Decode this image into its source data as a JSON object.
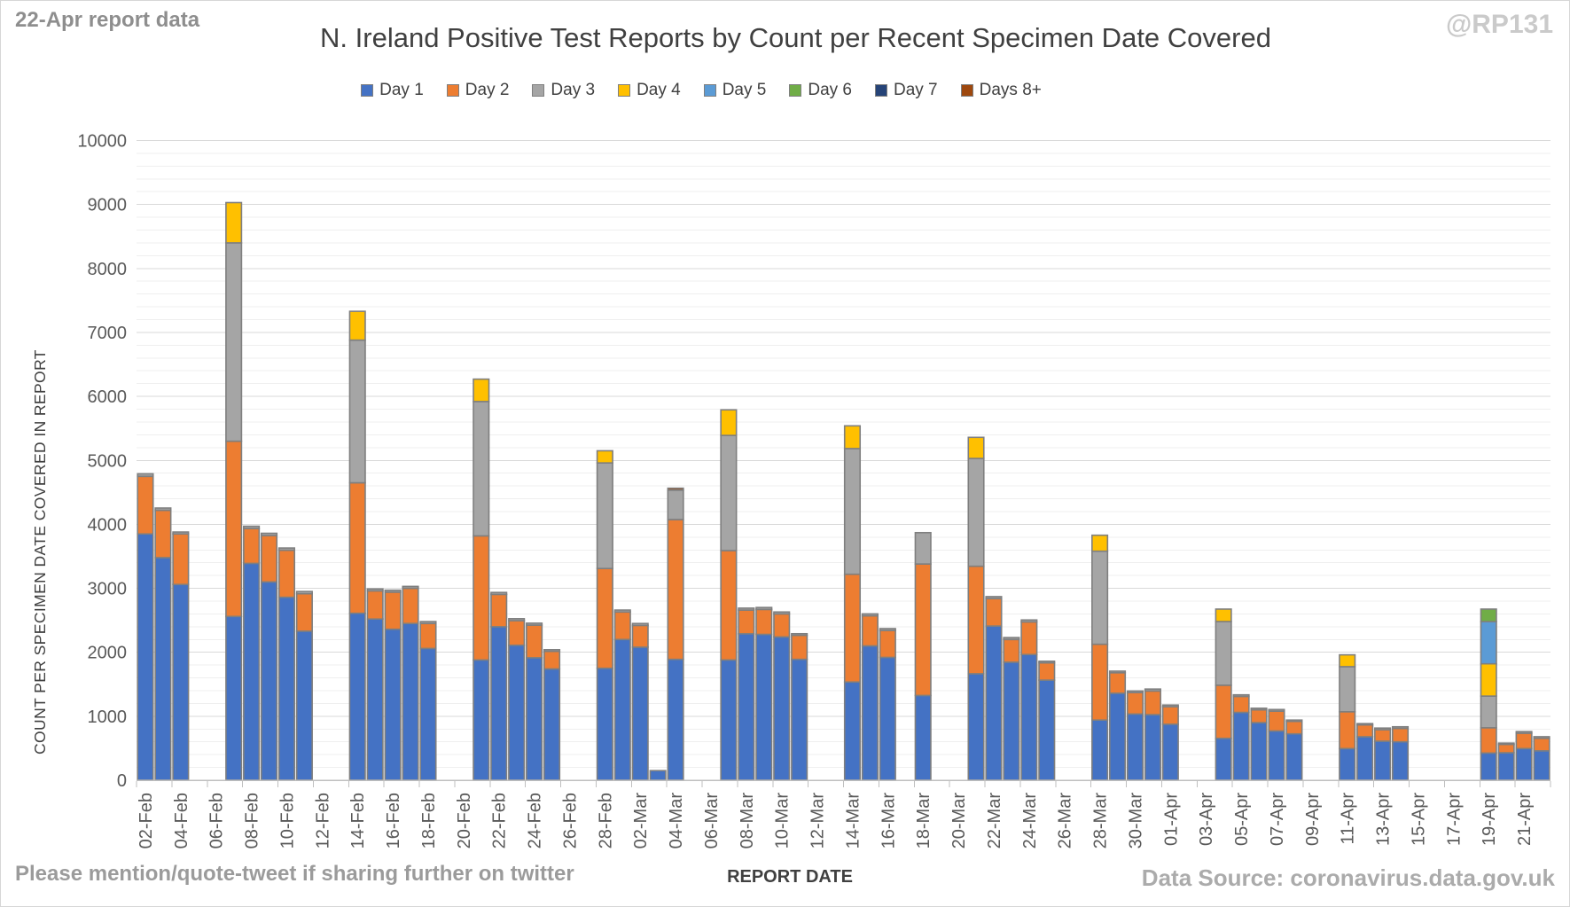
{
  "annotations": {
    "report_note": "22-Apr report data",
    "watermark": "@RP131",
    "footer_left": "Please mention/quote-tweet if sharing further on twitter",
    "footer_right": "Data Source: coronavirus.data.gov.uk"
  },
  "chart_data": {
    "type": "bar",
    "stacked": true,
    "title": "N. Ireland Positive Test Reports by Count per Recent Specimen Date Covered",
    "xlabel": "REPORT DATE",
    "ylabel": "COUNT PER SPECIMEN DATE COVERED IN REPORT",
    "ylim": [
      0,
      10000
    ],
    "y_tick_step": 1000,
    "y_minor_gridline_step": 200,
    "grid": true,
    "legend_position": "top",
    "series": [
      {
        "name": "Day 1",
        "color": "#4472C4"
      },
      {
        "name": "Day 2",
        "color": "#ED7D31"
      },
      {
        "name": "Day 3",
        "color": "#A5A5A5"
      },
      {
        "name": "Day 4",
        "color": "#FFC000"
      },
      {
        "name": "Day 5",
        "color": "#5B9BD5"
      },
      {
        "name": "Day 6",
        "color": "#70AD47"
      },
      {
        "name": "Day 7",
        "color": "#264478"
      },
      {
        "name": "Days 8+",
        "color": "#9E480E"
      }
    ],
    "x_slot_count": 80,
    "x_slot0_date": "02-Feb",
    "x_tick_labels": [
      "02-Feb",
      "04-Feb",
      "06-Feb",
      "08-Feb",
      "10-Feb",
      "12-Feb",
      "14-Feb",
      "16-Feb",
      "18-Feb",
      "20-Feb",
      "22-Feb",
      "24-Feb",
      "26-Feb",
      "28-Feb",
      "02-Mar",
      "04-Mar",
      "06-Mar",
      "08-Mar",
      "10-Mar",
      "12-Mar",
      "14-Mar",
      "16-Mar",
      "18-Mar",
      "20-Mar",
      "22-Mar",
      "24-Mar",
      "26-Mar",
      "28-Mar",
      "30-Mar",
      "01-Apr",
      "03-Apr",
      "05-Apr",
      "07-Apr",
      "09-Apr",
      "11-Apr",
      "13-Apr",
      "15-Apr",
      "17-Apr",
      "19-Apr",
      "21-Apr"
    ],
    "bars": [
      {
        "date": "02-Feb",
        "slot": 0,
        "values": [
          3850,
          900,
          40
        ]
      },
      {
        "date": "03-Feb",
        "slot": 1,
        "values": [
          3480,
          740,
          35
        ]
      },
      {
        "date": "04-Feb",
        "slot": 2,
        "values": [
          3060,
          790,
          30
        ]
      },
      {
        "date": "07-Feb",
        "slot": 5,
        "values": [
          2560,
          2740,
          3100,
          630
        ]
      },
      {
        "date": "08-Feb",
        "slot": 6,
        "values": [
          3390,
          545,
          35
        ]
      },
      {
        "date": "09-Feb",
        "slot": 7,
        "values": [
          3100,
          725,
          35
        ]
      },
      {
        "date": "10-Feb",
        "slot": 8,
        "values": [
          2860,
          735,
          35
        ]
      },
      {
        "date": "11-Feb",
        "slot": 9,
        "values": [
          2330,
          585,
          35
        ]
      },
      {
        "date": "14-Feb",
        "slot": 12,
        "values": [
          2610,
          2040,
          2230,
          450
        ]
      },
      {
        "date": "15-Feb",
        "slot": 13,
        "values": [
          2520,
          440,
          30
        ]
      },
      {
        "date": "16-Feb",
        "slot": 14,
        "values": [
          2360,
          580,
          30
        ]
      },
      {
        "date": "17-Feb",
        "slot": 15,
        "values": [
          2450,
          550,
          30
        ]
      },
      {
        "date": "18-Feb",
        "slot": 16,
        "values": [
          2060,
          390,
          30
        ]
      },
      {
        "date": "21-Feb",
        "slot": 19,
        "values": [
          1880,
          1940,
          2100,
          350
        ]
      },
      {
        "date": "22-Feb",
        "slot": 20,
        "values": [
          2400,
          505,
          30
        ]
      },
      {
        "date": "23-Feb",
        "slot": 21,
        "values": [
          2110,
          385,
          30
        ]
      },
      {
        "date": "24-Feb",
        "slot": 22,
        "values": [
          1915,
          510,
          30
        ]
      },
      {
        "date": "25-Feb",
        "slot": 23,
        "values": [
          1740,
          275,
          25
        ]
      },
      {
        "date": "28-Feb",
        "slot": 26,
        "values": [
          1750,
          1560,
          1650,
          190
        ]
      },
      {
        "date": "01-Mar",
        "slot": 27,
        "values": [
          2200,
          430,
          30
        ]
      },
      {
        "date": "02-Mar",
        "slot": 28,
        "values": [
          2080,
          340,
          30
        ]
      },
      {
        "date": "03-Mar",
        "slot": 29,
        "values": [
          150
        ]
      },
      {
        "date": "04-Mar",
        "slot": 30,
        "values": [
          1890,
          2185,
          460,
          0,
          0,
          0,
          0,
          30
        ]
      },
      {
        "date": "07-Mar",
        "slot": 33,
        "values": [
          1880,
          1710,
          1800,
          400
        ]
      },
      {
        "date": "08-Mar",
        "slot": 34,
        "values": [
          2290,
          370,
          30
        ]
      },
      {
        "date": "09-Mar",
        "slot": 35,
        "values": [
          2280,
          390,
          30
        ]
      },
      {
        "date": "10-Mar",
        "slot": 36,
        "values": [
          2240,
          360,
          30
        ]
      },
      {
        "date": "11-Mar",
        "slot": 37,
        "values": [
          1890,
          375,
          25
        ]
      },
      {
        "date": "14-Mar",
        "slot": 40,
        "values": [
          1535,
          1685,
          1965,
          355
        ]
      },
      {
        "date": "15-Mar",
        "slot": 41,
        "values": [
          2100,
          470,
          30
        ]
      },
      {
        "date": "16-Mar",
        "slot": 42,
        "values": [
          1920,
          420,
          30
        ]
      },
      {
        "date": "18-Mar",
        "slot": 44,
        "values": [
          1325,
          2055,
          490
        ]
      },
      {
        "date": "21-Mar",
        "slot": 47,
        "values": [
          1665,
          1680,
          1685,
          330
        ]
      },
      {
        "date": "22-Mar",
        "slot": 48,
        "values": [
          2410,
          430,
          30
        ]
      },
      {
        "date": "23-Mar",
        "slot": 49,
        "values": [
          1845,
          355,
          30
        ]
      },
      {
        "date": "24-Mar",
        "slot": 50,
        "values": [
          1965,
          510,
          30
        ]
      },
      {
        "date": "25-Mar",
        "slot": 51,
        "values": [
          1565,
          270,
          25
        ]
      },
      {
        "date": "28-Mar",
        "slot": 54,
        "values": [
          940,
          1185,
          1455,
          250
        ]
      },
      {
        "date": "29-Mar",
        "slot": 55,
        "values": [
          1360,
          320,
          25
        ]
      },
      {
        "date": "30-Mar",
        "slot": 56,
        "values": [
          1035,
          335,
          25
        ]
      },
      {
        "date": "31-Mar",
        "slot": 57,
        "values": [
          1025,
          370,
          30
        ]
      },
      {
        "date": "01-Apr",
        "slot": 58,
        "values": [
          875,
          275,
          25
        ]
      },
      {
        "date": "04-Apr",
        "slot": 61,
        "values": [
          655,
          830,
          995,
          195
        ]
      },
      {
        "date": "05-Apr",
        "slot": 62,
        "values": [
          1060,
          250,
          25
        ]
      },
      {
        "date": "06-Apr",
        "slot": 63,
        "values": [
          900,
          200,
          25
        ]
      },
      {
        "date": "07-Apr",
        "slot": 64,
        "values": [
          770,
          310,
          25
        ]
      },
      {
        "date": "08-Apr",
        "slot": 65,
        "values": [
          725,
          195,
          20
        ]
      },
      {
        "date": "11-Apr",
        "slot": 68,
        "values": [
          495,
          575,
          705,
          185
        ]
      },
      {
        "date": "12-Apr",
        "slot": 69,
        "values": [
          680,
          185,
          20
        ]
      },
      {
        "date": "13-Apr",
        "slot": 70,
        "values": [
          610,
          180,
          25
        ]
      },
      {
        "date": "14-Apr",
        "slot": 71,
        "values": [
          600,
          210,
          25
        ]
      },
      {
        "date": "19-Apr",
        "slot": 76,
        "values": [
          425,
          395,
          495,
          505,
          660,
          195
        ]
      },
      {
        "date": "20-Apr",
        "slot": 77,
        "values": [
          430,
          130,
          20
        ]
      },
      {
        "date": "21-Apr",
        "slot": 78,
        "values": [
          495,
          240,
          25
        ]
      },
      {
        "date": "22-Apr",
        "slot": 79,
        "values": [
          460,
          195,
          25
        ]
      }
    ]
  }
}
